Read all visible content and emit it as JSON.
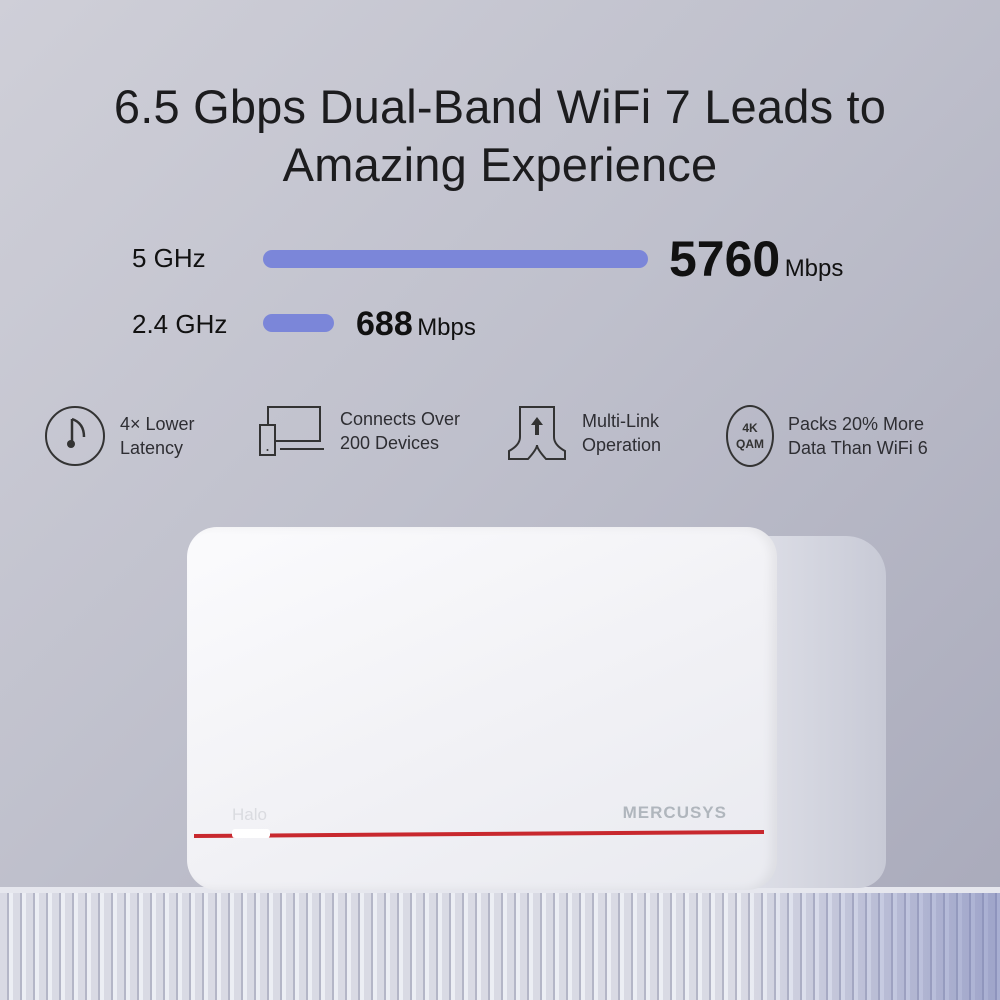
{
  "title_line1": "6.5 Gbps Dual-Band WiFi 7 Leads to",
  "title_line2": "Amazing Experience",
  "bands": [
    {
      "label": "5 GHz",
      "value": "5760",
      "unit": "Mbps"
    },
    {
      "label": "2.4 GHz",
      "value": "688",
      "unit": "Mbps"
    }
  ],
  "bar_color": "#7b86d9",
  "features": [
    {
      "icon": "stopwatch-icon",
      "line1": "4× Lower",
      "line2": "Latency"
    },
    {
      "icon": "devices-icon",
      "line1": "Connects Over",
      "line2": "200 Devices"
    },
    {
      "icon": "multi-link-icon",
      "line1": "Multi-Link",
      "line2": "Operation"
    },
    {
      "icon": "4k-qam-icon",
      "badge1": "4K",
      "badge2": "QAM",
      "line1": "Packs 20% More",
      "line2": "Data Than WiFi 6"
    }
  ],
  "device": {
    "model": "Halo",
    "brand": "MERCUSYS",
    "accent": "#c8282e"
  }
}
